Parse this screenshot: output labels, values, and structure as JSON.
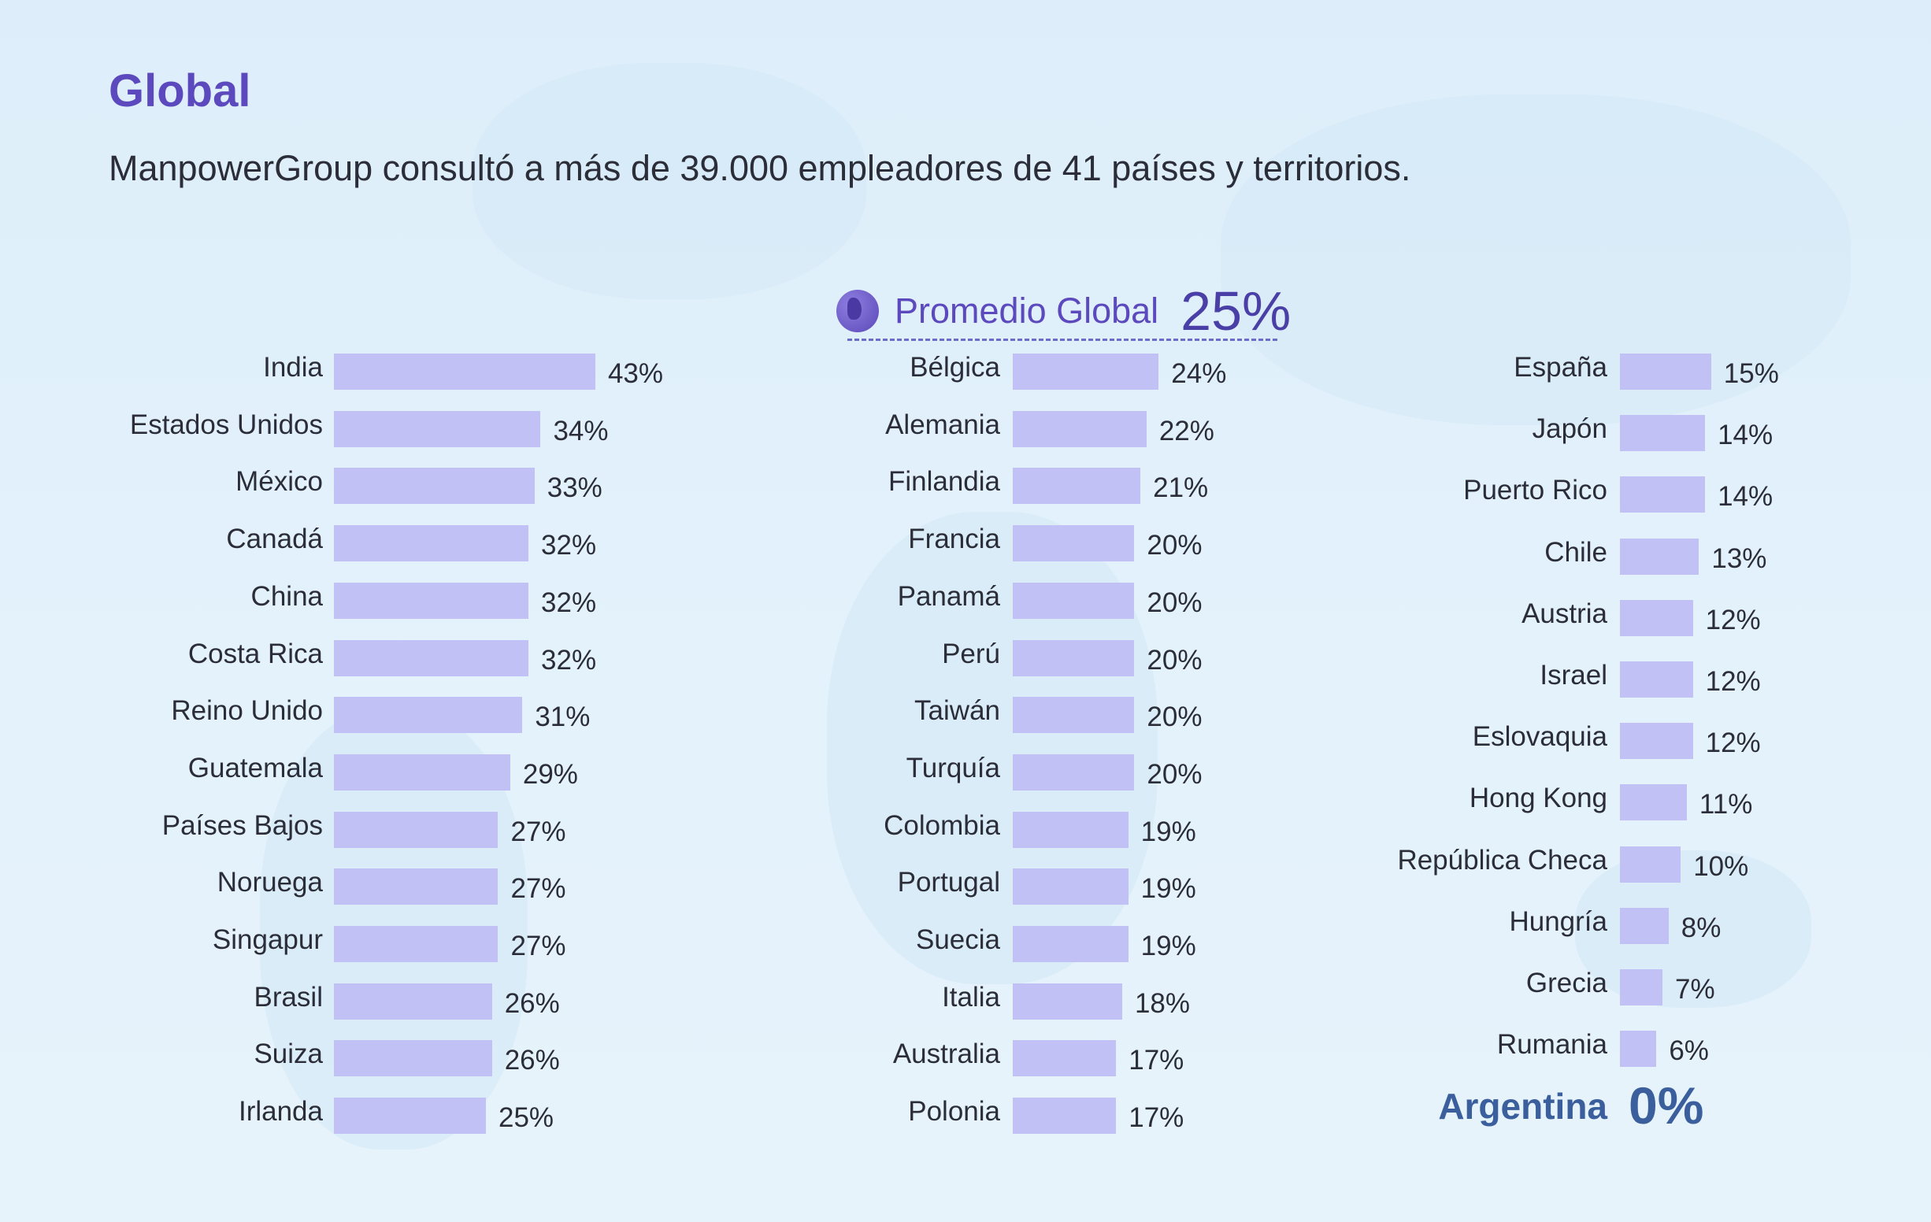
{
  "header": {
    "title": "Global",
    "subtitle": "ManpowerGroup consultó a más de 39.000 empleadores de 41 países y territorios."
  },
  "global_average": {
    "label": "Promedio Global",
    "value": "25%",
    "icon": "globe-icon"
  },
  "highlight": {
    "label": "Argentina",
    "value": "0%",
    "color": "#3a5f9c"
  },
  "colors": {
    "bar": "#c1c1f6",
    "title": "#5b49bd",
    "background": "#e3f1fa"
  },
  "chart_data": {
    "type": "bar",
    "orientation": "horizontal",
    "grid": false,
    "columns": [
      {
        "categories": [
          "India",
          "Estados Unidos",
          "México",
          "Canadá",
          "China",
          "Costa Rica",
          "Reino Unido",
          "Guatemala",
          "Países Bajos",
          "Noruega",
          "Singapur",
          "Brasil",
          "Suiza",
          "Irlanda"
        ],
        "values": [
          43,
          34,
          33,
          32,
          32,
          32,
          31,
          29,
          27,
          27,
          27,
          26,
          26,
          25
        ]
      },
      {
        "categories": [
          "Bélgica",
          "Alemania",
          "Finlandia",
          "Francia",
          "Panamá",
          "Perú",
          "Taiwán",
          "Turquía",
          "Colombia",
          "Portugal",
          "Suecia",
          "Italia",
          "Australia",
          "Polonia"
        ],
        "values": [
          24,
          22,
          21,
          20,
          20,
          20,
          20,
          20,
          19,
          19,
          19,
          18,
          17,
          17
        ]
      },
      {
        "categories": [
          "España",
          "Japón",
          "Puerto Rico",
          "Chile",
          "Austria",
          "Israel",
          "Eslovaquia",
          "Hong Kong",
          "República Checa",
          "Hungría",
          "Grecia",
          "Rumania"
        ],
        "values": [
          15,
          14,
          14,
          13,
          12,
          12,
          12,
          11,
          10,
          8,
          7,
          6
        ]
      }
    ]
  }
}
